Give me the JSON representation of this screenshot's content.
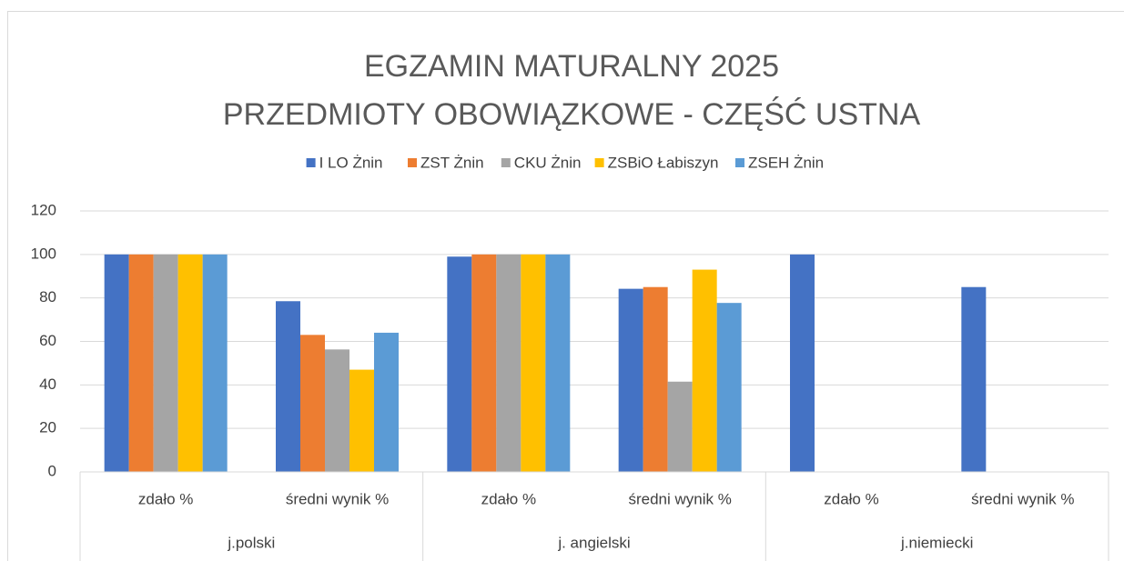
{
  "chart_data": {
    "type": "bar",
    "title": "EGZAMIN MATURALNY 2025",
    "subtitle": "PRZEDMIOTY OBOWIĄZKOWE - CZĘŚĆ USTNA",
    "categories": [
      "zdało %",
      "średni wynik %",
      "zdało %",
      "średni wynik %",
      "zdało %",
      "średni wynik %"
    ],
    "category_groups": [
      "j.polski",
      "j. angielski",
      "j.niemiecki"
    ],
    "series": [
      {
        "name": "I LO Żnin",
        "color": "#4472c4",
        "values": [
          100,
          78.5,
          99,
          84.2,
          100,
          85
        ]
      },
      {
        "name": "ZST Żnin",
        "color": "#ed7d31",
        "values": [
          100,
          63,
          100,
          85,
          null,
          null
        ]
      },
      {
        "name": "CKU Żnin",
        "color": "#a5a5a5",
        "values": [
          100,
          56.3,
          100,
          41.5,
          null,
          null
        ]
      },
      {
        "name": "ZSBiO Łabiszyn",
        "color": "#ffc000",
        "values": [
          100,
          47,
          100,
          93,
          null,
          null
        ]
      },
      {
        "name": "ZSEH Żnin",
        "color": "#5b9bd5",
        "values": [
          100,
          64,
          100,
          77.7,
          null,
          null
        ]
      }
    ],
    "ylim": [
      0,
      120
    ],
    "yticks": [
      0,
      20,
      40,
      60,
      80,
      100,
      120
    ],
    "grid": true,
    "legend": "top"
  }
}
